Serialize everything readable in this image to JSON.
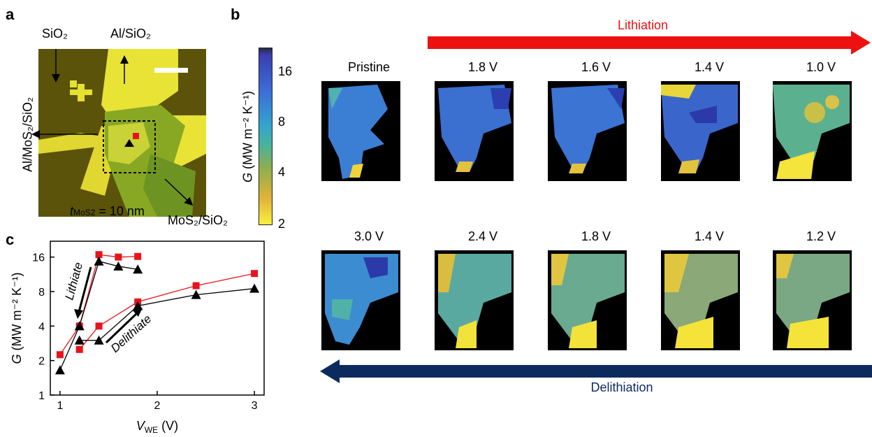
{
  "panels": {
    "a": "a",
    "b": "b",
    "c": "c"
  },
  "panel_a": {
    "label_sio2": "SiO₂",
    "label_al_sio2": "Al/SiO₂",
    "label_al_mos2_sio2": "Al/MoS₂/SiO₂",
    "label_mos2_sio2": "MoS₂/SiO₂",
    "label_thickness": "t",
    "label_thickness_sub": "MoS2",
    "label_thickness_value": " = 10 nm"
  },
  "panel_b": {
    "lithiation_label": "Lithiation",
    "delithiation_label": "Delithiation",
    "lithiation_color": "#ee1111",
    "delithiation_color": "#0d2a5e",
    "colorbar": {
      "label_main": "G",
      "label_units": " (MW m⁻² K⁻¹)",
      "ticks": [
        "16",
        "8",
        "4",
        "2"
      ]
    },
    "row1_titles": [
      "Pristine",
      "1.8 V",
      "1.6 V",
      "1.4 V",
      "1.0 V"
    ],
    "row2_titles": [
      "3.0 V",
      "2.4 V",
      "1.8 V",
      "1.4 V",
      "1.2 V"
    ]
  },
  "chart_data": {
    "type": "line",
    "xlabel": "V",
    "xlabel_sub": "WE",
    "xlabel_unit": " (V)",
    "ylabel": "G",
    "ylabel_unit": " (MW m⁻² K⁻¹)",
    "x_scale": "linear",
    "y_scale": "log2",
    "xlim": [
      0.9,
      3.1
    ],
    "ylim": [
      1,
      22
    ],
    "xticks": [
      1,
      2,
      3
    ],
    "yticks": [
      1,
      2,
      4,
      8,
      16
    ],
    "annotations": [
      "Lithiate",
      "Delithiate"
    ],
    "series": [
      {
        "marker": "square",
        "color": "#e8141b",
        "lithiate": {
          "x": [
            1.8,
            1.6,
            1.4,
            1.2,
            1.0
          ],
          "y": [
            16.2,
            16.0,
            16.8,
            4.0,
            2.25
          ]
        },
        "delithiate": {
          "x": [
            1.2,
            1.4,
            1.8,
            2.4,
            3.0
          ],
          "y": [
            2.5,
            4.0,
            6.5,
            9.0,
            11.5
          ]
        }
      },
      {
        "marker": "triangle",
        "color": "#000000",
        "lithiate": {
          "x": [
            1.8,
            1.6,
            1.4,
            1.2,
            1.0
          ],
          "y": [
            12.5,
            13.3,
            14.7,
            4.0,
            1.65
          ]
        },
        "delithiate": {
          "x": [
            1.2,
            1.4,
            1.8,
            2.4,
            3.0
          ],
          "y": [
            3.0,
            3.0,
            6.0,
            7.5,
            8.5
          ]
        }
      }
    ]
  }
}
